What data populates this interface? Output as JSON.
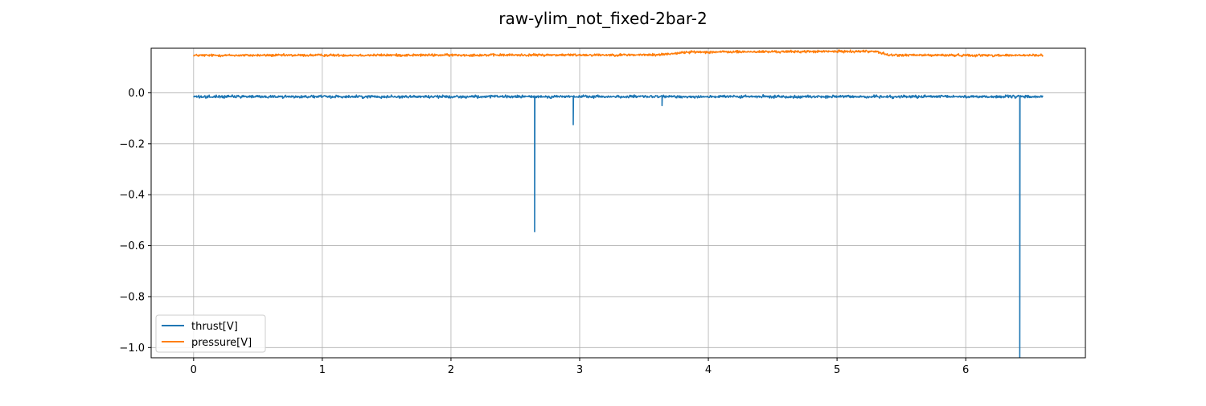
{
  "chart_data": {
    "type": "line",
    "title": "raw-ylim_not_fixed-2bar-2",
    "xlabel": "",
    "ylabel": "",
    "xlim": [
      -0.33,
      6.93
    ],
    "ylim": [
      -1.04,
      0.175
    ],
    "x_ticks": [
      0,
      1,
      2,
      3,
      4,
      5,
      6
    ],
    "x_tick_labels": [
      "0",
      "1",
      "2",
      "3",
      "4",
      "5",
      "6"
    ],
    "y_ticks": [
      0.0,
      -0.2,
      -0.4,
      -0.6,
      -0.8,
      -1.0
    ],
    "y_tick_labels": [
      "0.0",
      "−0.2",
      "−0.4",
      "−0.6",
      "−0.8",
      "−1.0"
    ],
    "grid": true,
    "legend_position": "lower-left",
    "x_range": [
      0,
      6.6
    ],
    "series": [
      {
        "name": "thrust[V]",
        "color": "#1f77b4",
        "baseline": -0.015,
        "noise": 0.008,
        "spikes": [
          {
            "x": 2.65,
            "y": -0.545
          },
          {
            "x": 2.95,
            "y": -0.125
          },
          {
            "x": 3.64,
            "y": -0.05
          },
          {
            "x": 6.42,
            "y": -1.05
          }
        ]
      },
      {
        "name": "pressure[V]",
        "color": "#ff7f0e",
        "noise": 0.007,
        "segments": [
          {
            "x0": 0.0,
            "x1": 3.6,
            "y0": 0.147,
            "y1": 0.149
          },
          {
            "x0": 3.6,
            "x1": 3.85,
            "y0": 0.149,
            "y1": 0.16
          },
          {
            "x0": 3.85,
            "x1": 5.3,
            "y0": 0.16,
            "y1": 0.163
          },
          {
            "x0": 5.3,
            "x1": 5.4,
            "y0": 0.163,
            "y1": 0.148
          },
          {
            "x0": 5.4,
            "x1": 6.6,
            "y0": 0.148,
            "y1": 0.147
          }
        ]
      }
    ]
  }
}
